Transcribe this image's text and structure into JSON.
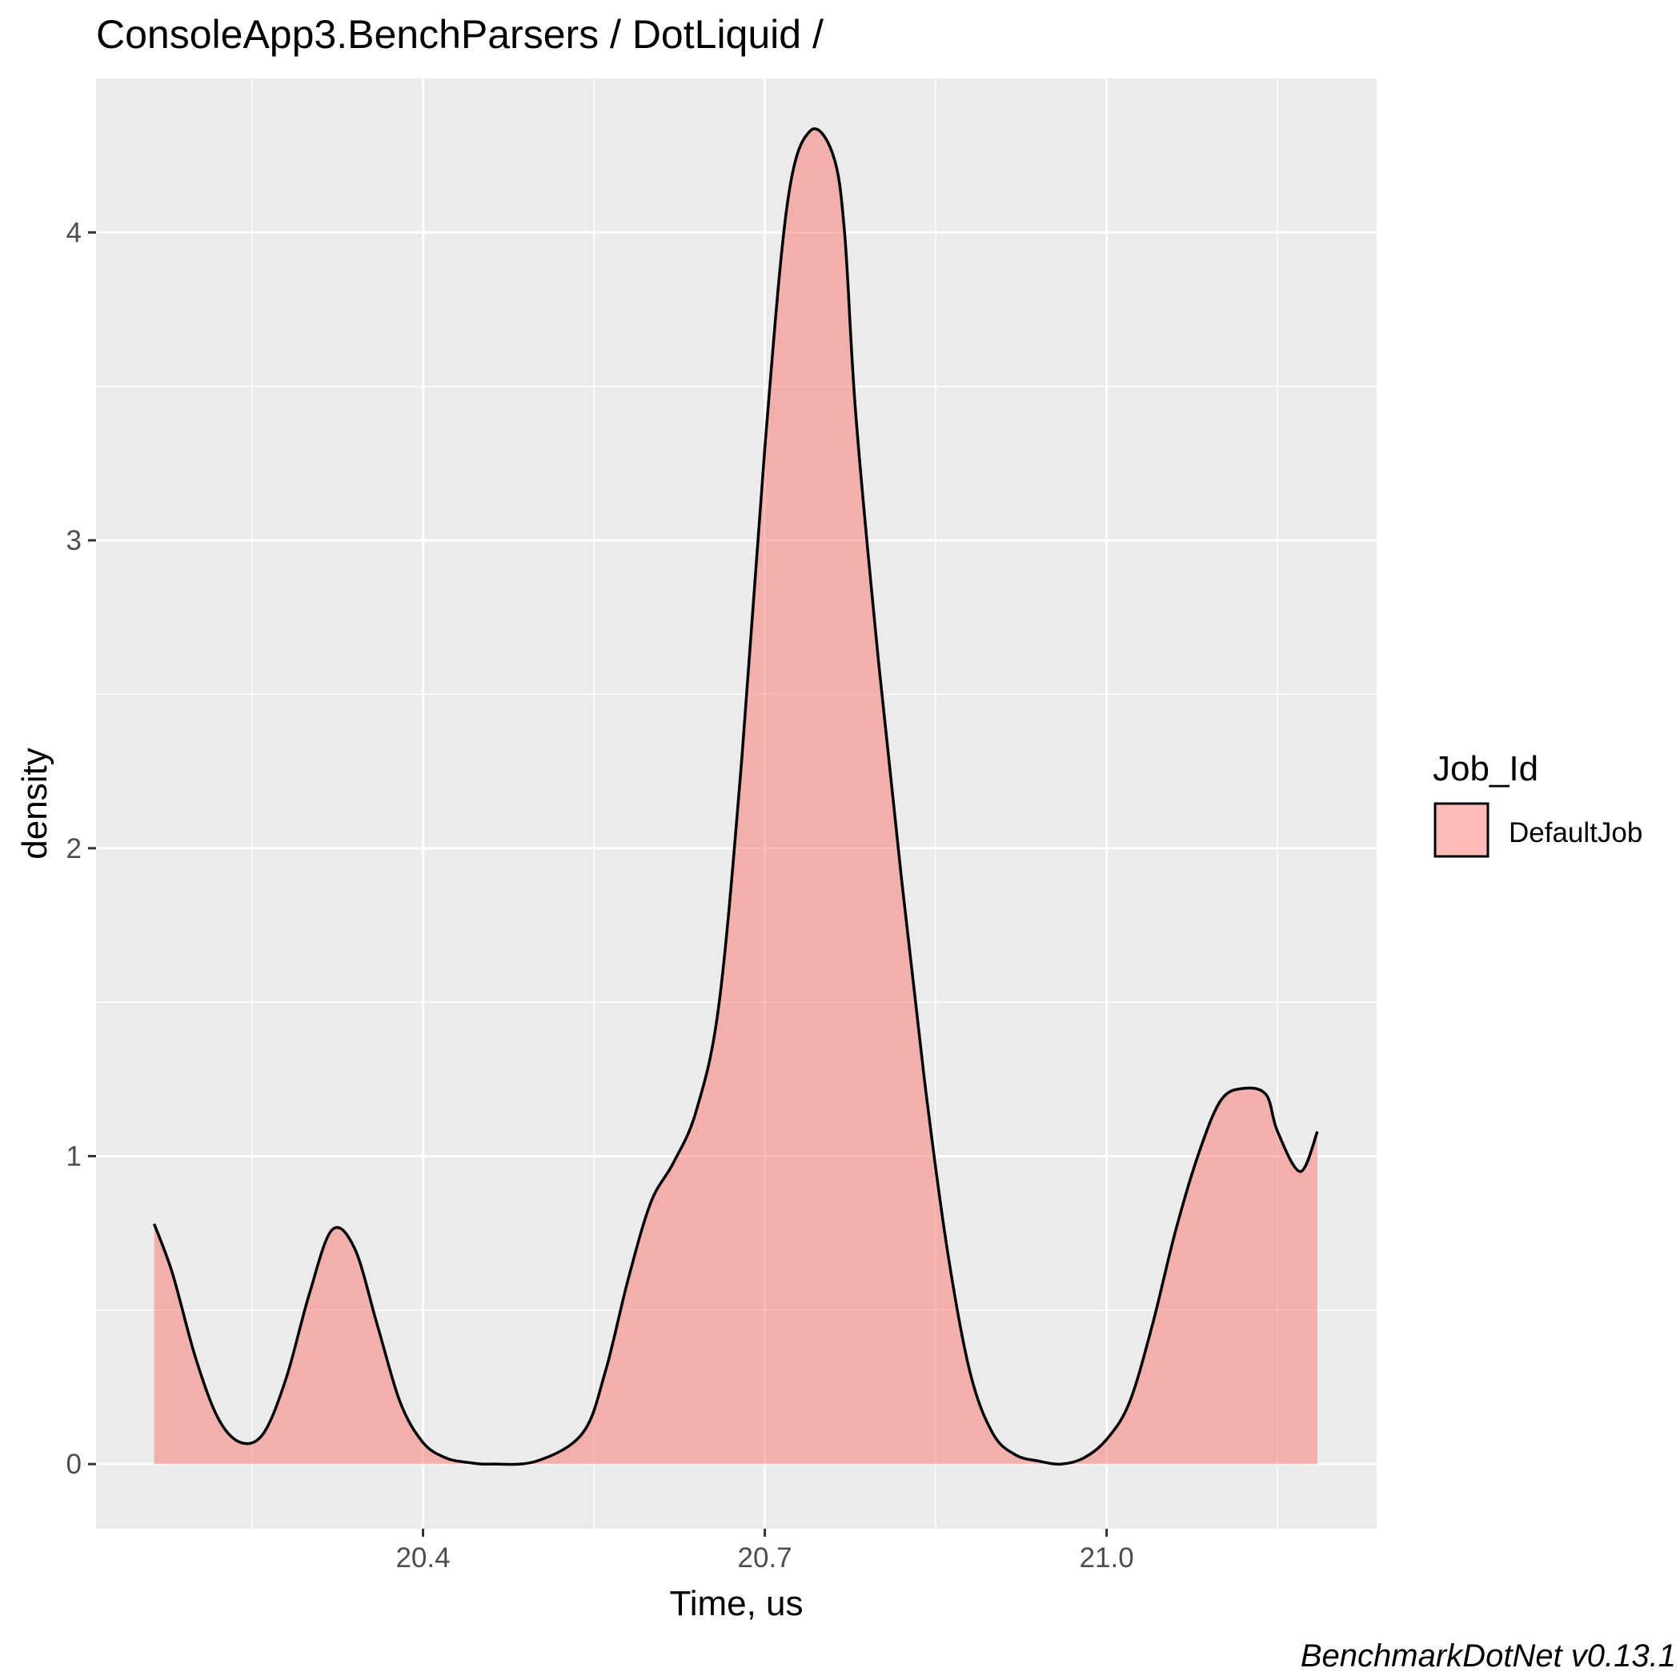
{
  "chart_data": {
    "type": "area",
    "title": "ConsoleApp3.BenchParsers / DotLiquid /",
    "xlabel": "Time, us",
    "ylabel": "density",
    "caption": "BenchmarkDotNet v0.13.1",
    "xlim": [
      20.113,
      21.237
    ],
    "ylim": [
      -0.21,
      4.5
    ],
    "x_ticks": [
      20.4,
      20.7,
      21.0
    ],
    "x_tick_labels": [
      "20.4",
      "20.7",
      "21.0"
    ],
    "y_ticks": [
      0,
      1,
      2,
      3,
      4
    ],
    "y_tick_labels": [
      "0",
      "1",
      "2",
      "3",
      "4"
    ],
    "grid": true,
    "legend": {
      "title": "Job_Id",
      "position": "right",
      "entries": [
        "DefaultJob"
      ]
    },
    "series": [
      {
        "name": "DefaultJob",
        "color": "#f8766d",
        "fill_opacity": 0.5,
        "x": [
          20.164,
          20.18,
          20.2,
          20.22,
          20.24,
          20.26,
          20.28,
          20.3,
          20.32,
          20.34,
          20.36,
          20.38,
          20.4,
          20.42,
          20.44,
          20.46,
          20.5,
          20.54,
          20.56,
          20.58,
          20.6,
          20.62,
          20.64,
          20.66,
          20.68,
          20.7,
          20.72,
          20.74,
          20.76,
          20.77,
          20.78,
          20.8,
          20.82,
          20.84,
          20.86,
          20.88,
          20.9,
          20.92,
          20.94,
          20.96,
          20.98,
          21.0,
          21.02,
          21.04,
          21.06,
          21.08,
          21.1,
          21.12,
          21.14,
          21.15,
          21.17,
          21.185
        ],
        "y": [
          0.78,
          0.62,
          0.35,
          0.15,
          0.07,
          0.1,
          0.28,
          0.55,
          0.76,
          0.7,
          0.45,
          0.2,
          0.07,
          0.02,
          0.005,
          0.0,
          0.01,
          0.1,
          0.3,
          0.6,
          0.85,
          0.98,
          1.15,
          1.5,
          2.3,
          3.3,
          4.1,
          4.33,
          4.25,
          4.0,
          3.4,
          2.6,
          1.9,
          1.25,
          0.7,
          0.3,
          0.1,
          0.03,
          0.01,
          0.0,
          0.02,
          0.08,
          0.2,
          0.45,
          0.75,
          1.0,
          1.18,
          1.22,
          1.2,
          1.08,
          0.95,
          1.08
        ]
      }
    ]
  }
}
